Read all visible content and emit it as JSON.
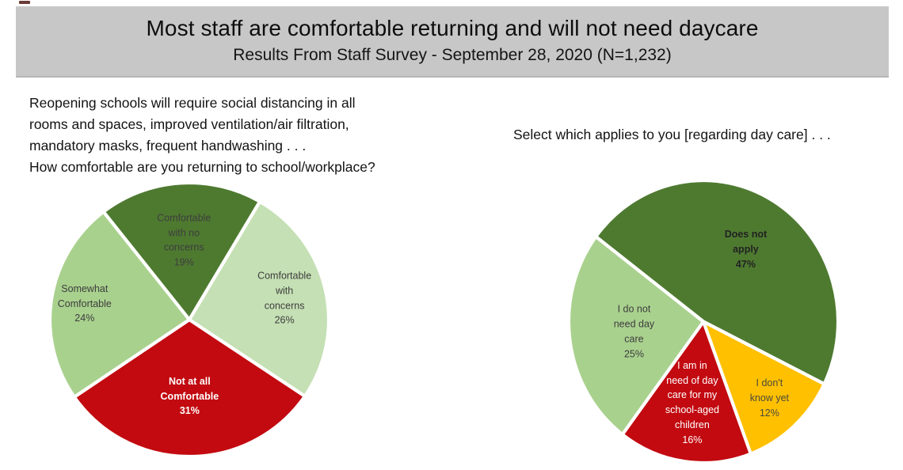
{
  "header": {
    "title": "Most staff are comfortable returning and will not need daycare",
    "subtitle": "Results From Staff Survey - September 28, 2020 (N=1,232)",
    "background": "#c7c7c7"
  },
  "questions": {
    "left": {
      "text": "Reopening schools will require social distancing in all\nrooms and spaces, improved ventilation/air filtration,\nmandatory masks, frequent handwashing . . .\nHow comfortable are you returning to school/workplace?"
    },
    "right": {
      "text": "Select which applies to you [regarding day care] . . ."
    }
  },
  "chart_data": [
    {
      "type": "pie",
      "title": "How comfortable are you returning to school/workplace?",
      "start_angle_deg": 322,
      "slice_separator_color": "#ffffff",
      "slices": [
        {
          "label": "Comfortable with no concerns",
          "value": 19,
          "color": "#4e7a30",
          "label_lines": [
            "Comfortable",
            "with no",
            "concerns",
            "19%"
          ],
          "label_color": "#3d3d3d",
          "bold": false,
          "label_r": 0.58
        },
        {
          "label": "Comfortable with concerns",
          "value": 26,
          "color": "#c5e0b4",
          "label_lines": [
            "Comfortable",
            "with",
            "concerns",
            "26%"
          ],
          "label_color": "#3d3d3d",
          "bold": false,
          "label_r": 0.7
        },
        {
          "label": "Not at all Comfortable",
          "value": 31,
          "color": "#c20a10",
          "label_lines": [
            "Not at all",
            "Comfortable",
            "31%"
          ],
          "label_color": "#ffffff",
          "bold": true,
          "label_r": 0.56
        },
        {
          "label": "Somewhat Comfortable",
          "value": 24,
          "color": "#a9d18e",
          "label_lines": [
            "Somewhat",
            "Comfortable",
            "24%"
          ],
          "label_color": "#3d3d3d",
          "bold": false,
          "label_r": 0.76
        }
      ]
    },
    {
      "type": "pie",
      "title": "Select which applies to you [regarding day care]",
      "start_angle_deg": 307,
      "slice_separator_color": "#ffffff",
      "slices": [
        {
          "label": "Does not apply",
          "value": 47,
          "color": "#4e7a30",
          "label_lines": [
            "Does not",
            "apply",
            "47%"
          ],
          "label_color": "#222222",
          "bold": true,
          "label_r": 0.6
        },
        {
          "label": "I don't know yet",
          "value": 12,
          "color": "#ffc000",
          "label_lines": [
            "I don't",
            "know yet",
            "12%"
          ],
          "label_color": "#4a4a3d",
          "bold": false,
          "label_r": 0.73
        },
        {
          "label": "I am in need of day care for my school-aged children",
          "value": 16,
          "color": "#c20a10",
          "label_lines": [
            "I am in",
            "need of day",
            "care for my",
            "school-aged",
            "children",
            "16%"
          ],
          "label_color": "#ffffff",
          "bold": false,
          "label_r": 0.58
        },
        {
          "label": "I do not need day care",
          "value": 25,
          "color": "#a9d18e",
          "label_lines": [
            "I do not",
            "need day",
            "care",
            "25%"
          ],
          "label_color": "#3d3d3d",
          "bold": false,
          "label_r": 0.52
        }
      ]
    }
  ]
}
